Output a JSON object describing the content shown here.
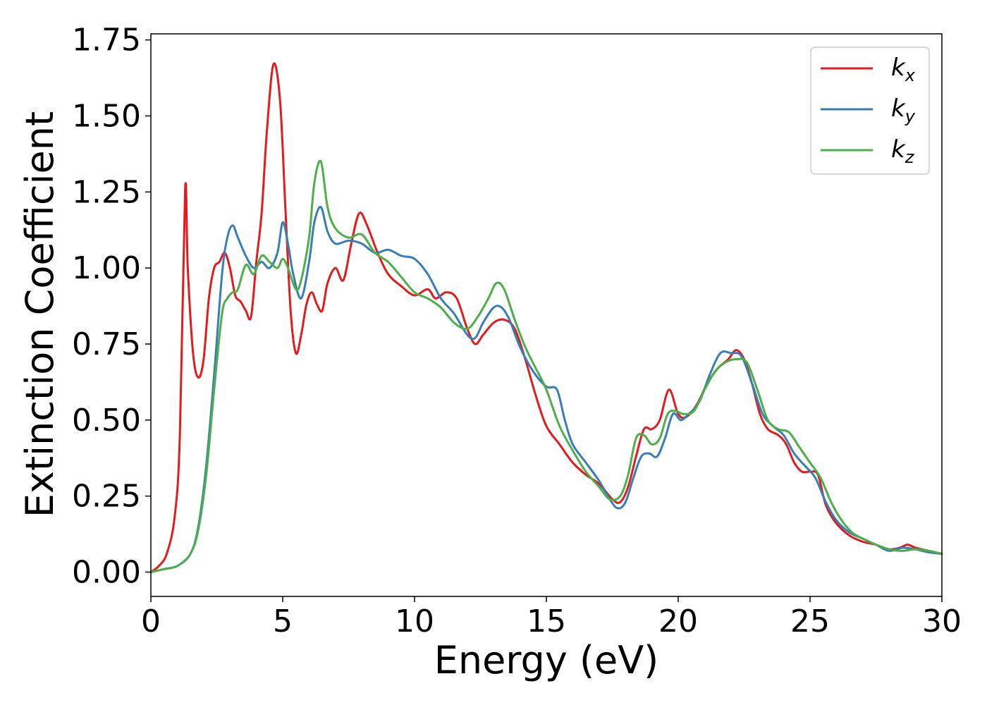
{
  "chart_data": {
    "type": "line",
    "title": "",
    "xlabel": "Energy (eV)",
    "ylabel": "Extinction Coefficient",
    "xlim": [
      0,
      30
    ],
    "ylim": [
      -0.08,
      1.77
    ],
    "xticks": [
      0,
      5,
      10,
      15,
      20,
      25,
      30
    ],
    "xtick_labels": [
      "0",
      "5",
      "10",
      "15",
      "20",
      "25",
      "30"
    ],
    "yticks": [
      0,
      0.25,
      0.5,
      0.75,
      1.0,
      1.25,
      1.5,
      1.75
    ],
    "ytick_labels": [
      "0.00",
      "0.25",
      "0.50",
      "0.75",
      "1.00",
      "1.25",
      "1.50",
      "1.75"
    ],
    "grid": false,
    "legend_position": "top-right",
    "series": [
      {
        "name": "k_x",
        "label_base": "k",
        "label_sub": "x",
        "color": "#e41a1c",
        "x": [
          0,
          0.3,
          0.6,
          0.9,
          1.1,
          1.3,
          1.4,
          1.6,
          1.8,
          2.0,
          2.2,
          2.4,
          2.6,
          2.8,
          3.0,
          3.2,
          3.4,
          3.6,
          3.8,
          4.0,
          4.2,
          4.4,
          4.65,
          4.9,
          5.1,
          5.3,
          5.5,
          5.7,
          5.9,
          6.1,
          6.3,
          6.5,
          6.7,
          7.0,
          7.3,
          7.6,
          7.9,
          8.2,
          8.6,
          9.0,
          9.5,
          10.0,
          10.5,
          10.8,
          11.2,
          11.6,
          12.0,
          12.3,
          12.6,
          13.0,
          13.4,
          13.8,
          14.2,
          14.6,
          15.0,
          15.5,
          16.0,
          16.5,
          17.0,
          17.5,
          17.8,
          18.1,
          18.4,
          18.7,
          19.0,
          19.3,
          19.65,
          20.0,
          20.3,
          20.7,
          21.1,
          21.5,
          21.9,
          22.2,
          22.5,
          22.8,
          23.1,
          23.4,
          23.8,
          24.1,
          24.4,
          24.7,
          25.0,
          25.3,
          25.6,
          26.0,
          26.5,
          27.0,
          27.5,
          28.0,
          28.4,
          28.7,
          29.0,
          29.5,
          30.0
        ],
        "y": [
          0.0,
          0.02,
          0.06,
          0.18,
          0.45,
          1.26,
          1.0,
          0.72,
          0.64,
          0.7,
          0.9,
          1.0,
          1.02,
          1.05,
          1.0,
          0.91,
          0.89,
          0.86,
          0.84,
          1.02,
          1.18,
          1.45,
          1.67,
          1.55,
          1.2,
          0.86,
          0.72,
          0.78,
          0.88,
          0.92,
          0.88,
          0.86,
          0.95,
          1.0,
          0.96,
          1.08,
          1.18,
          1.14,
          1.05,
          0.98,
          0.94,
          0.91,
          0.93,
          0.9,
          0.92,
          0.9,
          0.8,
          0.75,
          0.78,
          0.82,
          0.83,
          0.8,
          0.7,
          0.58,
          0.48,
          0.42,
          0.36,
          0.32,
          0.29,
          0.24,
          0.23,
          0.28,
          0.38,
          0.47,
          0.47,
          0.5,
          0.6,
          0.52,
          0.51,
          0.55,
          0.62,
          0.67,
          0.7,
          0.73,
          0.7,
          0.62,
          0.52,
          0.47,
          0.45,
          0.42,
          0.36,
          0.33,
          0.33,
          0.32,
          0.22,
          0.16,
          0.12,
          0.1,
          0.09,
          0.075,
          0.08,
          0.09,
          0.08,
          0.07,
          0.06
        ]
      },
      {
        "name": "k_y",
        "label_base": "k",
        "label_sub": "y",
        "color": "#377eb8",
        "x": [
          0,
          0.5,
          1.0,
          1.5,
          1.8,
          2.1,
          2.4,
          2.7,
          2.9,
          3.1,
          3.3,
          3.6,
          3.9,
          4.2,
          4.5,
          4.8,
          5.0,
          5.2,
          5.4,
          5.7,
          6.0,
          6.2,
          6.45,
          6.7,
          7.0,
          7.5,
          8.0,
          8.5,
          9.0,
          9.5,
          10.0,
          10.5,
          11.0,
          11.5,
          12.0,
          12.3,
          12.6,
          13.0,
          13.3,
          13.6,
          14.0,
          14.5,
          15.0,
          15.4,
          15.7,
          16.0,
          16.5,
          17.0,
          17.4,
          17.7,
          18.0,
          18.3,
          18.6,
          18.9,
          19.2,
          19.5,
          19.8,
          20.1,
          20.4,
          20.8,
          21.2,
          21.6,
          22.0,
          22.4,
          22.8,
          23.2,
          23.6,
          24.0,
          24.4,
          24.8,
          25.2,
          25.6,
          26.0,
          26.5,
          27.0,
          27.5,
          28.0,
          28.5,
          29.0,
          29.5,
          30.0
        ],
        "y": [
          0.0,
          0.01,
          0.02,
          0.06,
          0.15,
          0.35,
          0.65,
          0.98,
          1.1,
          1.14,
          1.1,
          1.04,
          1.0,
          1.02,
          1.0,
          1.05,
          1.15,
          1.08,
          0.98,
          0.9,
          1.02,
          1.15,
          1.2,
          1.12,
          1.08,
          1.09,
          1.08,
          1.05,
          1.06,
          1.04,
          1.03,
          0.98,
          0.9,
          0.85,
          0.78,
          0.77,
          0.82,
          0.87,
          0.87,
          0.83,
          0.74,
          0.66,
          0.61,
          0.6,
          0.5,
          0.42,
          0.36,
          0.3,
          0.24,
          0.21,
          0.23,
          0.31,
          0.38,
          0.39,
          0.38,
          0.44,
          0.52,
          0.5,
          0.52,
          0.56,
          0.65,
          0.72,
          0.72,
          0.71,
          0.62,
          0.52,
          0.48,
          0.45,
          0.39,
          0.35,
          0.31,
          0.23,
          0.17,
          0.13,
          0.11,
          0.09,
          0.07,
          0.08,
          0.075,
          0.065,
          0.06
        ]
      },
      {
        "name": "k_z",
        "label_base": "k",
        "label_sub": "z",
        "color": "#4daf4a",
        "x": [
          0,
          0.5,
          1.0,
          1.5,
          1.8,
          2.1,
          2.4,
          2.7,
          2.9,
          3.1,
          3.3,
          3.6,
          3.9,
          4.2,
          4.5,
          4.8,
          5.0,
          5.2,
          5.5,
          5.7,
          6.0,
          6.2,
          6.45,
          6.7,
          7.0,
          7.5,
          8.0,
          8.5,
          9.0,
          9.5,
          10.0,
          10.5,
          11.0,
          11.5,
          12.0,
          12.4,
          12.8,
          13.1,
          13.4,
          13.8,
          14.2,
          14.6,
          15.0,
          15.5,
          16.0,
          16.5,
          17.0,
          17.4,
          17.8,
          18.1,
          18.4,
          18.7,
          19.0,
          19.3,
          19.6,
          19.9,
          20.2,
          20.6,
          21.0,
          21.4,
          21.8,
          22.2,
          22.6,
          23.0,
          23.4,
          23.8,
          24.2,
          24.6,
          25.0,
          25.4,
          25.8,
          26.2,
          26.6,
          27.0,
          27.5,
          28.0,
          28.5,
          29.0,
          29.5,
          30.0
        ],
        "y": [
          0.0,
          0.01,
          0.02,
          0.06,
          0.14,
          0.32,
          0.6,
          0.85,
          0.9,
          0.92,
          0.93,
          1.01,
          0.98,
          1.04,
          1.02,
          1.0,
          1.03,
          1.0,
          0.93,
          0.96,
          1.1,
          1.28,
          1.35,
          1.2,
          1.13,
          1.1,
          1.11,
          1.05,
          1.02,
          0.97,
          0.92,
          0.9,
          0.87,
          0.82,
          0.8,
          0.84,
          0.9,
          0.95,
          0.93,
          0.83,
          0.74,
          0.67,
          0.6,
          0.48,
          0.4,
          0.33,
          0.28,
          0.24,
          0.25,
          0.32,
          0.44,
          0.45,
          0.42,
          0.44,
          0.52,
          0.53,
          0.52,
          0.53,
          0.6,
          0.66,
          0.69,
          0.7,
          0.69,
          0.6,
          0.5,
          0.47,
          0.46,
          0.41,
          0.36,
          0.31,
          0.23,
          0.17,
          0.13,
          0.11,
          0.09,
          0.075,
          0.07,
          0.075,
          0.07,
          0.06
        ]
      }
    ]
  }
}
